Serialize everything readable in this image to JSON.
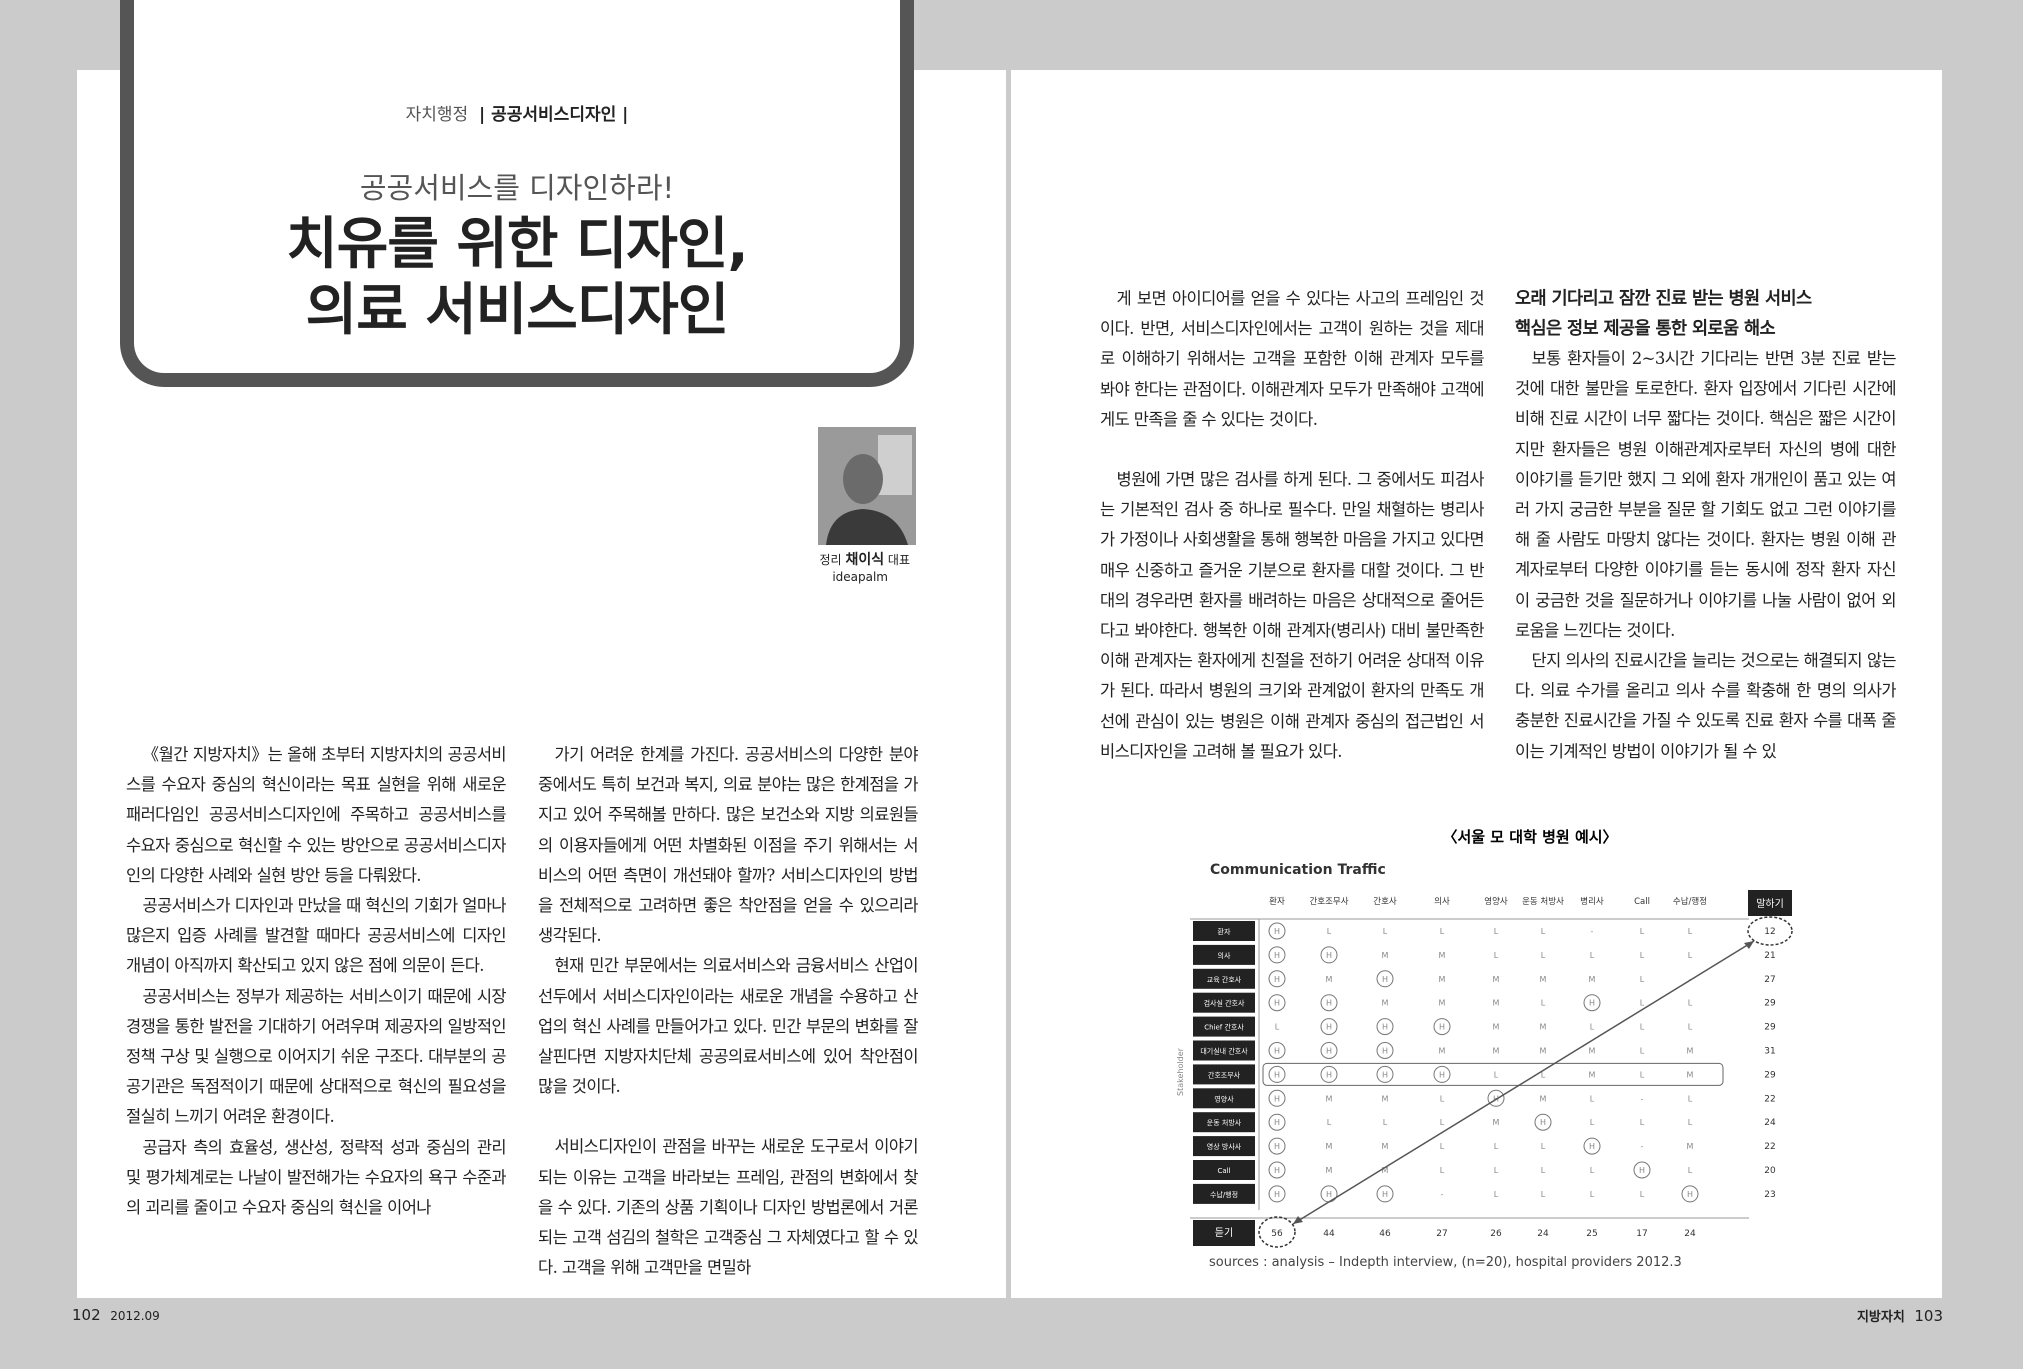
{
  "header": {
    "section": "자치행정",
    "category": "| 공공서비스디자인 |",
    "subtitle": "공공서비스를 디자인하라!",
    "title_lines": [
      "치유를 위한 디자인,",
      "의료 서비스디자인"
    ]
  },
  "author": {
    "role": "정리",
    "name": "채이식",
    "position": "대표",
    "company": "ideapalm"
  },
  "left_columns": [
    [
      "《월간 지방자치》는 올해 초부터 지방자치의 공공서비스를 수요자 중심의 혁신이라는 목표 실현을 위해 새로운 패러다임인 공공서비스디자인에 주목하고 공공서비스를 수요자 중심으로 혁신할 수 있는 방안으로 공공서비스디자인의 다양한 사례와 실현 방안 등을 다뤄왔다.",
      "공공서비스가 디자인과 만났을 때 혁신의 기회가 얼마나 많은지 입증 사례를 발견할 때마다 공공서비스에 디자인 개념이 아직까지 확산되고 있지 않은 점에 의문이 든다.",
      "공공서비스는 정부가 제공하는 서비스이기 때문에 시장경쟁을 통한 발전을 기대하기 어려우며 제공자의 일방적인 정책 구상 및 실행으로 이어지기 쉬운 구조다. 대부분의 공공기관은 독점적이기 때문에 상대적으로 혁신의 필요성을 절실히 느끼기 어려운 환경이다.",
      "공급자 측의 효율성, 생산성, 정략적 성과 중심의 관리 및 평가체계로는 나날이 발전해가는 수요자의 욕구 수준과의 괴리를 줄이고 수요자 중심의 혁신을 이어나"
    ],
    [
      "가기 어려운 한계를 가진다. 공공서비스의 다양한 분야 중에서도 특히 보건과 복지, 의료 분야는 많은 한계점을 가지고 있어 주목해볼 만하다. 많은 보건소와 지방 의료원들의 이용자들에게 어떤 차별화된 이점을 주기 위해서는 서비스의 어떤 측면이 개선돼야 할까? 서비스디자인의 방법을 전체적으로 고려하면 좋은 착안점을 얻을 수 있으리라 생각된다.",
      "현재 민간 부문에서는 의료서비스와 금융서비스 산업이 선두에서 서비스디자인이라는 새로운 개념을 수용하고 산업의 혁신 사례를 만들어가고 있다. 민간 부문의 변화를 잘 살핀다면 지방자치단체 공공의료서비스에 있어 착안점이 많을 것이다.",
      "서비스디자인이 관점을 바꾸는 새로운 도구로서 이야기되는 이유는 고객을 바라보는 프레임, 관점의 변화에서 찾을 수 있다. 기존의 상품 기획이나 디자인 방법론에서 거론되는 고객 섬김의 철학은 고객중심 그 자체였다고 할 수 있다. 고객을 위해 고객만을 면밀하"
    ]
  ],
  "right_column_1": [
    "게 보면 아이디어를 얻을 수 있다는 사고의 프레임인 것이다. 반면, 서비스디자인에서는 고객이 원하는 것을 제대로 이해하기 위해서는 고객을 포함한 이해 관계자 모두를 봐야 한다는 관점이다. 이해관계자 모두가 만족해야 고객에게도 만족을 줄 수 있다는 것이다.",
    "병원에 가면 많은 검사를 하게 된다. 그 중에서도 피검사는 기본적인 검사 중 하나로 필수다. 만일 채혈하는 병리사가 가정이나 사회생활을 통해 행복한 마음을 가지고 있다면 매우 신중하고 즐거운 기분으로 환자를 대할 것이다. 그 반대의 경우라면 환자를 배려하는 마음은 상대적으로 줄어든다고 봐야한다. 행복한 이해 관계자(병리사) 대비 불만족한 이해 관계자는 환자에게 친절을 전하기 어려운 상대적 이유가 된다. 따라서 병원의 크기와 관계없이 환자의 만족도 개선에 관심이 있는 병원은 이해 관계자 중심의 접근법인 서비스디자인을 고려해 볼 필요가 있다."
  ],
  "right_column_2": {
    "heading": [
      "오래 기다리고 잠깐 진료 받는 병원 서비스",
      "핵심은 정보 제공을 통한 외로움 해소"
    ],
    "paragraphs": [
      "보통 환자들이 2~3시간 기다리는 반면 3분 진료 받는 것에 대한 불만을 토로한다. 환자 입장에서 기다린 시간에 비해 진료 시간이 너무 짧다는 것이다. 핵심은 짧은 시간이지만 환자들은 병원 이해관계자로부터 자신의 병에 대한 이야기를 듣기만 했지 그 외에 환자 개개인이 품고 있는 여러 가지 궁금한 부분을 질문 할 기회도 없고 그런 이야기를 해 줄 사람도 마땅치 않다는 것이다. 환자는 병원 이해 관계자로부터 다양한 이야기를 듣는 동시에 정작 환자 자신이 궁금한 것을 질문하거나 이야기를 나눌 사람이 없어 외로움을 느낀다는 것이다.",
      "단지 의사의 진료시간을 늘리는 것으로는 해결되지 않는다. 의료 수가를 올리고 의사 수를 확충해 한 명의 의사가 충분한 진료시간을 가질 수 있도록 진료 환자 수를 대폭 줄이는 기계적인 방법이 이야기가 될 수 있"
    ]
  },
  "figure": {
    "caption": "〈서울 모 대학 병원 예시〉",
    "title": "Communication Traffic",
    "side_label": "Stakeholder",
    "columns": [
      "환자",
      "간호조무사",
      "간호사",
      "의사",
      "영양사",
      "운동 처방사",
      "병리사",
      "Call",
      "수납/행정"
    ],
    "speak_label": "말하기",
    "listen_label": "듣기",
    "rows": [
      {
        "label": "환자",
        "cells": [
          "H",
          "L",
          "L",
          "L",
          "L",
          "L",
          "-",
          "L",
          "L"
        ],
        "speak": "12"
      },
      {
        "label": "의사",
        "cells": [
          "H",
          "H",
          "M",
          "M",
          "L",
          "L",
          "L",
          "L",
          "L"
        ],
        "speak": "21"
      },
      {
        "label": "교육 간호사",
        "cells": [
          "H",
          "M",
          "H",
          "M",
          "M",
          "M",
          "M",
          "L",
          "-"
        ],
        "speak": "27"
      },
      {
        "label": "검사실 간호사",
        "cells": [
          "H",
          "H",
          "M",
          "M",
          "M",
          "L",
          "H",
          "L",
          "L"
        ],
        "speak": "29"
      },
      {
        "label": "Chief 간호사",
        "cells": [
          "L",
          "H",
          "H",
          "H",
          "M",
          "M",
          "L",
          "L",
          "L"
        ],
        "speak": "29"
      },
      {
        "label": "대기실내 간호사",
        "cells": [
          "H",
          "H",
          "H",
          "M",
          "M",
          "M",
          "M",
          "L",
          "M"
        ],
        "speak": "31"
      },
      {
        "label": "간호조무사",
        "cells": [
          "H",
          "H",
          "H",
          "H",
          "L",
          "L",
          "M",
          "L",
          "M"
        ],
        "speak": "29"
      },
      {
        "label": "영양사",
        "cells": [
          "H",
          "M",
          "M",
          "L",
          "H",
          "M",
          "L",
          "-",
          "L"
        ],
        "speak": "22"
      },
      {
        "label": "운동 처방사",
        "cells": [
          "H",
          "L",
          "L",
          "L",
          "M",
          "H",
          "L",
          "L",
          "L"
        ],
        "speak": "24"
      },
      {
        "label": "영상 방사사",
        "cells": [
          "H",
          "M",
          "M",
          "L",
          "L",
          "L",
          "H",
          "-",
          "M"
        ],
        "speak": "22"
      },
      {
        "label": "Call",
        "cells": [
          "H",
          "M",
          "M",
          "L",
          "L",
          "L",
          "L",
          "H",
          "L"
        ],
        "speak": "20"
      },
      {
        "label": "수납/행정",
        "cells": [
          "H",
          "H",
          "H",
          "-",
          "L",
          "L",
          "L",
          "L",
          "H"
        ],
        "speak": "23"
      }
    ],
    "listen": [
      "56",
      "44",
      "46",
      "27",
      "26",
      "24",
      "25",
      "17",
      "24"
    ],
    "source": "sources :  analysis – Indepth interview, (n=20), hospital providers  2012.3"
  },
  "footer": {
    "left_page": "102",
    "left_date": "2012.09",
    "right_magazine": "지방자치",
    "right_page": "103"
  }
}
